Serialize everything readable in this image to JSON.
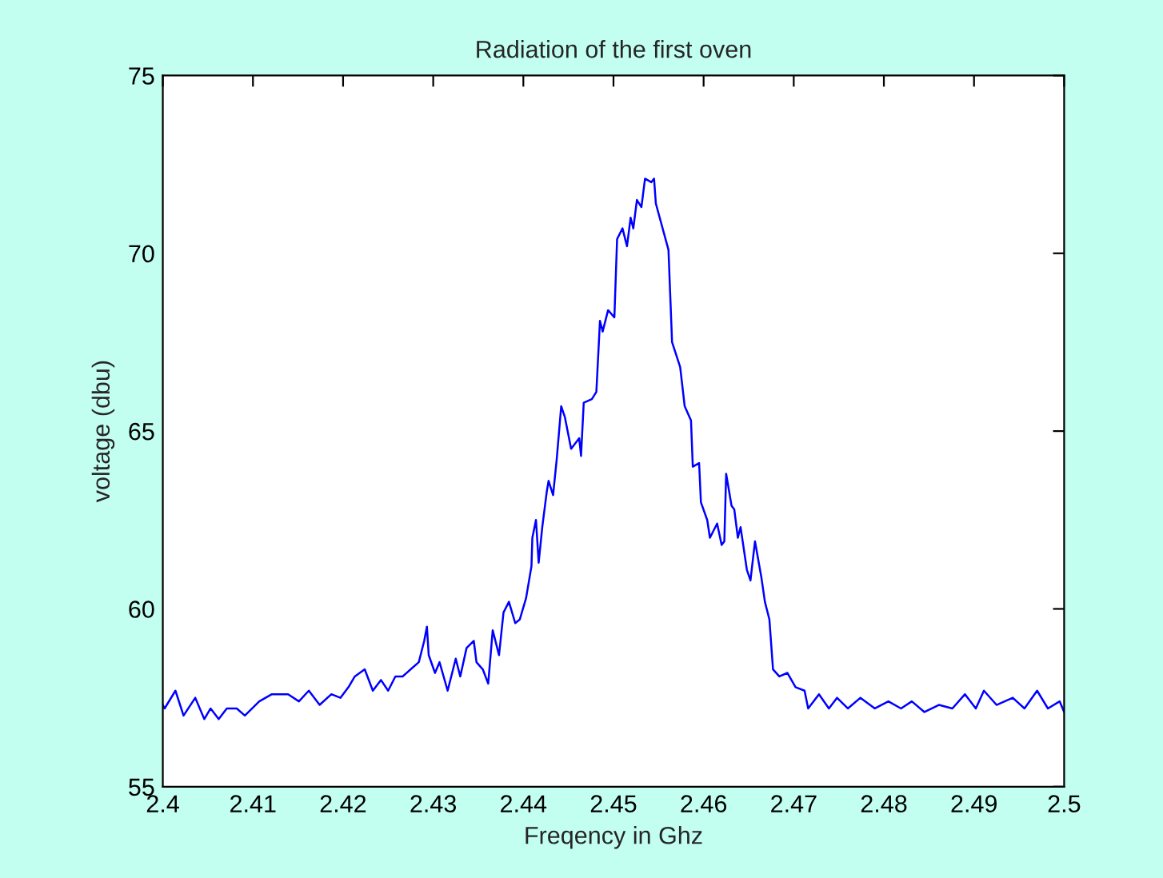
{
  "chart_data": {
    "type": "line",
    "title": "Radiation of the first oven",
    "xlabel": "Freqency in Ghz",
    "ylabel": "voltage (dbu)",
    "x": [
      2.4,
      2.4002,
      2.4014,
      2.4023,
      2.4036,
      2.4046,
      2.4053,
      2.4062,
      2.4071,
      2.4082,
      2.4091,
      2.4107,
      2.4121,
      2.4139,
      2.4151,
      2.4162,
      2.4174,
      2.4187,
      2.4197,
      2.4206,
      2.4213,
      2.4224,
      2.4233,
      2.4242,
      2.425,
      2.4258,
      2.4266,
      2.4275,
      2.4284,
      2.429,
      2.4293,
      2.4295,
      2.4302,
      2.4307,
      2.4316,
      2.4325,
      2.433,
      2.4337,
      2.4345,
      2.4348,
      2.4355,
      2.4361,
      2.4366,
      2.4373,
      2.4378,
      2.4384,
      2.4391,
      2.4396,
      2.4403,
      2.4409,
      2.441,
      2.4414,
      2.4417,
      2.4421,
      2.4426,
      2.4428,
      2.4433,
      2.4437,
      2.4442,
      2.4446,
      2.4453,
      2.4462,
      2.4464,
      2.4467,
      2.4476,
      2.4481,
      2.4485,
      2.4488,
      2.4494,
      2.4501,
      2.4504,
      2.451,
      2.4515,
      2.4519,
      2.4522,
      2.4526,
      2.4531,
      2.4535,
      2.4542,
      2.4545,
      2.4547,
      2.4561,
      2.4565,
      2.4574,
      2.4579,
      2.4586,
      2.4588,
      2.4595,
      2.4597,
      2.4604,
      2.4607,
      2.4615,
      2.462,
      2.4623,
      2.4625,
      2.4631,
      2.4634,
      2.4638,
      2.4641,
      2.4648,
      2.4652,
      2.4657,
      2.4664,
      2.4668,
      2.4673,
      2.4677,
      2.4684,
      2.4693,
      2.4702,
      2.4712,
      2.4716,
      2.4728,
      2.4739,
      2.4748,
      2.476,
      2.4774,
      2.479,
      2.4805,
      2.4819,
      2.4831,
      2.4845,
      2.4861,
      2.4876,
      2.489,
      2.4902,
      2.4911,
      2.4925,
      2.4943,
      2.4956,
      2.497,
      2.4982,
      2.4995,
      2.5
    ],
    "series": [
      {
        "color": "#0000ff",
        "values": [
          57.3,
          57.2,
          57.7,
          57.0,
          57.5,
          56.9,
          57.2,
          56.9,
          57.2,
          57.2,
          57.0,
          57.4,
          57.6,
          57.6,
          57.4,
          57.7,
          57.3,
          57.6,
          57.5,
          57.8,
          58.1,
          58.3,
          57.7,
          58.0,
          57.7,
          58.1,
          58.1,
          58.3,
          58.5,
          59.1,
          59.5,
          58.7,
          58.2,
          58.5,
          57.7,
          58.6,
          58.1,
          58.9,
          59.1,
          58.5,
          58.3,
          57.9,
          59.4,
          58.7,
          59.9,
          60.2,
          59.6,
          59.7,
          60.3,
          61.2,
          62.0,
          62.5,
          61.3,
          62.3,
          63.3,
          63.6,
          63.2,
          64.2,
          65.7,
          65.4,
          64.5,
          64.8,
          64.3,
          65.8,
          65.9,
          66.1,
          68.1,
          67.8,
          68.4,
          68.2,
          70.4,
          70.7,
          70.2,
          71.0,
          70.7,
          71.5,
          71.3,
          72.1,
          72.0,
          72.1,
          71.4,
          70.1,
          67.5,
          66.8,
          65.7,
          65.3,
          64.0,
          64.1,
          63.0,
          62.5,
          62.0,
          62.4,
          61.8,
          61.9,
          63.8,
          62.9,
          62.8,
          62.0,
          62.3,
          61.1,
          60.8,
          61.9,
          60.9,
          60.2,
          59.7,
          58.3,
          58.1,
          58.2,
          57.8,
          57.7,
          57.2,
          57.6,
          57.2,
          57.5,
          57.2,
          57.5,
          57.2,
          57.4,
          57.2,
          57.4,
          57.1,
          57.3,
          57.2,
          57.6,
          57.2,
          57.7,
          57.3,
          57.5,
          57.2,
          57.7,
          57.2,
          57.4,
          57.1
        ]
      }
    ],
    "xlim": [
      2.4,
      2.5
    ],
    "ylim": [
      55,
      75
    ],
    "xticks": [
      {
        "value": 2.4,
        "label": "2.4"
      },
      {
        "value": 2.41,
        "label": "2.41"
      },
      {
        "value": 2.42,
        "label": "2.42"
      },
      {
        "value": 2.43,
        "label": "2.43"
      },
      {
        "value": 2.44,
        "label": "2.44"
      },
      {
        "value": 2.45,
        "label": "2.45"
      },
      {
        "value": 2.46,
        "label": "2.46"
      },
      {
        "value": 2.47,
        "label": "2.47"
      },
      {
        "value": 2.48,
        "label": "2.48"
      },
      {
        "value": 2.49,
        "label": "2.49"
      },
      {
        "value": 2.5,
        "label": "2.5"
      }
    ],
    "yticks": [
      55,
      60,
      65,
      70,
      75
    ]
  }
}
